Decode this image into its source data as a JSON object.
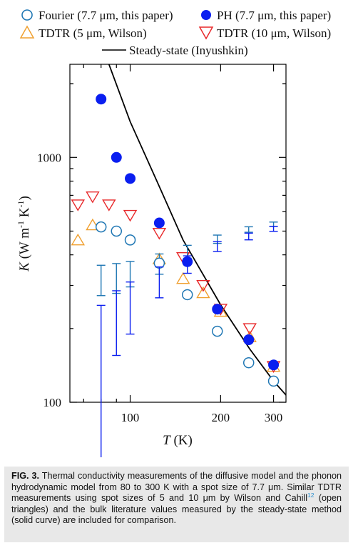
{
  "chart_data": {
    "type": "scatter",
    "x_scale": "log",
    "y_scale": "log",
    "xlim": [
      63,
      330
    ],
    "ylim": [
      100,
      2400
    ],
    "xlabel_italic": "T",
    "xlabel_unit": " (K)",
    "ylabel_italic": "K",
    "ylabel_unit_main": " (W m",
    "ylabel_exp1": "-1",
    "ylabel_unit_mid": " K",
    "ylabel_exp2": "-1",
    "ylabel_unit_end": ")",
    "x_tick_labels": [
      {
        "value": 100,
        "label": "100"
      },
      {
        "value": 200,
        "label": "200"
      },
      {
        "value": 300,
        "label": "300"
      }
    ],
    "y_tick_labels": [
      {
        "value": 100,
        "label": "100"
      },
      {
        "value": 1000,
        "label": "1000"
      }
    ],
    "legend": {
      "fourier": "Fourier (7.7 μm, this paper)",
      "ph": "PH (7.7 μm, this paper)",
      "tdtr5": "TDTR  (5 μm, Wilson)",
      "tdtr10": "TDTR (10 μm, Wilson)",
      "steady": "Steady-state (Inyushkin)"
    },
    "colors": {
      "fourier": "#1f77b4",
      "ph": "#0a1ef0",
      "tdtr5": "#f0a030",
      "tdtr10": "#e8282a",
      "steady": "#000000"
    },
    "series": [
      {
        "key": "ph",
        "marker": "filled-circle",
        "points": [
          {
            "x": 80,
            "y": 1730,
            "err": 110
          },
          {
            "x": 90,
            "y": 1000,
            "err": 65
          },
          {
            "x": 100,
            "y": 820,
            "err": 60
          },
          {
            "x": 125,
            "y": 540,
            "err": 45
          },
          {
            "x": 155,
            "y": 375,
            "err": 30
          },
          {
            "x": 195,
            "y": 240,
            "err": 20
          },
          {
            "x": 248,
            "y": 180,
            "err": 15
          },
          {
            "x": 300,
            "y": 142,
            "err": 12
          }
        ]
      },
      {
        "key": "fourier",
        "marker": "open-circle",
        "points": [
          {
            "x": 80,
            "y": 520,
            "err": 45
          },
          {
            "x": 90,
            "y": 500,
            "err": 45
          },
          {
            "x": 100,
            "y": 460,
            "err": 40
          },
          {
            "x": 125,
            "y": 370,
            "err": 35
          },
          {
            "x": 155,
            "y": 275,
            "err": 25
          },
          {
            "x": 195,
            "y": 195,
            "err": 18
          },
          {
            "x": 248,
            "y": 145,
            "err": 13
          },
          {
            "x": 300,
            "y": 122,
            "err": 11
          }
        ]
      },
      {
        "key": "tdtr5",
        "marker": "open-triangle-up",
        "points": [
          {
            "x": 67,
            "y": 460
          },
          {
            "x": 75,
            "y": 530
          },
          {
            "x": 125,
            "y": 385
          },
          {
            "x": 150,
            "y": 320
          },
          {
            "x": 175,
            "y": 280
          },
          {
            "x": 200,
            "y": 235
          },
          {
            "x": 250,
            "y": 185
          },
          {
            "x": 300,
            "y": 140
          }
        ]
      },
      {
        "key": "tdtr10",
        "marker": "open-triangle-down",
        "points": [
          {
            "x": 67,
            "y": 640
          },
          {
            "x": 75,
            "y": 690
          },
          {
            "x": 85,
            "y": 640
          },
          {
            "x": 100,
            "y": 580
          },
          {
            "x": 125,
            "y": 490
          },
          {
            "x": 150,
            "y": 390
          },
          {
            "x": 175,
            "y": 300
          },
          {
            "x": 200,
            "y": 240
          },
          {
            "x": 250,
            "y": 200
          },
          {
            "x": 300,
            "y": 140
          }
        ]
      },
      {
        "key": "steady",
        "marker": "line",
        "points": [
          {
            "x": 85,
            "y": 2400
          },
          {
            "x": 100,
            "y": 1400
          },
          {
            "x": 125,
            "y": 760
          },
          {
            "x": 150,
            "y": 460
          },
          {
            "x": 200,
            "y": 250
          },
          {
            "x": 250,
            "y": 165
          },
          {
            "x": 300,
            "y": 122
          },
          {
            "x": 330,
            "y": 107
          }
        ]
      }
    ]
  },
  "caption": {
    "label": "FIG. 3.",
    "text_a": " Thermal conductivity measurements of the diffusive model and the phonon hydrodynamic model from 80 to 300 K with a spot size of 7.7 μm. Similar TDTR measurements using spot sizes of 5 and 10 μm by Wilson and Cahill",
    "citation": "12",
    "text_b": " (open triangles) and the bulk literature values measured by the steady-state method (solid curve) are included for comparison."
  }
}
